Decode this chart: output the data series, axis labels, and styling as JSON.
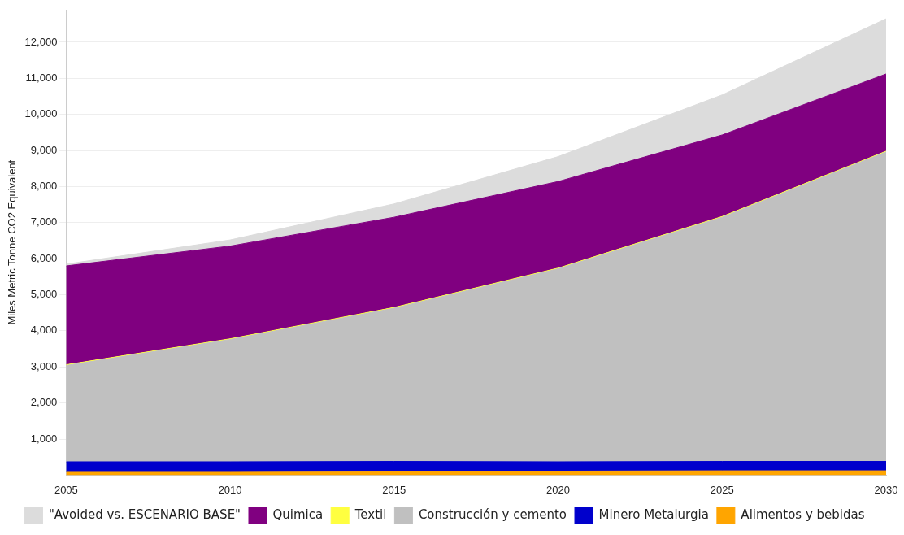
{
  "chart_data": {
    "type": "area",
    "stacked": true,
    "ylabel": "Miles Metric Tonne CO2 Equivalent",
    "x": [
      2005,
      2010,
      2015,
      2020,
      2025,
      2030
    ],
    "xlim": [
      2005,
      2030
    ],
    "xticks": [
      2005,
      2010,
      2015,
      2020,
      2025,
      2030
    ],
    "ylim": [
      0,
      12900
    ],
    "yticks": [
      {
        "value": 1000,
        "label": "1,000"
      },
      {
        "value": 2000,
        "label": "2,000"
      },
      {
        "value": 3000,
        "label": "3,000"
      },
      {
        "value": 4000,
        "label": "4,000"
      },
      {
        "value": 5000,
        "label": "5,000"
      },
      {
        "value": 6000,
        "label": "6,000"
      },
      {
        "value": 7000,
        "label": "7,000"
      },
      {
        "value": 8000,
        "label": "8,000"
      },
      {
        "value": 9000,
        "label": "9,000"
      },
      {
        "value": 10000,
        "label": "10,000"
      },
      {
        "value": 11000,
        "label": "11,000"
      },
      {
        "value": 12000,
        "label": "12,000"
      }
    ],
    "grid": "y",
    "legend": "bottom",
    "series": [
      {
        "name": "Alimentos y bebidas",
        "color": "#ffa500",
        "values": [
          100,
          100,
          110,
          110,
          120,
          120
        ]
      },
      {
        "name": "Minero Metalurgia",
        "color": "#0000cc",
        "values": [
          270,
          270,
          270,
          260,
          260,
          260
        ]
      },
      {
        "name": "Construcción y cemento",
        "color": "#c0c0c0",
        "values": [
          2670,
          3390,
          4250,
          5350,
          6770,
          8580
        ]
      },
      {
        "name": "Textil",
        "color": "#ffff40",
        "values": [
          20,
          20,
          20,
          20,
          20,
          20
        ]
      },
      {
        "name": "Quimica",
        "color": "#800080",
        "values": [
          2740,
          2570,
          2500,
          2400,
          2260,
          2140
        ]
      },
      {
        "name": "\"Avoided vs. ESCENARIO BASE\"",
        "color": "#dcdcdc",
        "values": [
          50,
          170,
          370,
          690,
          1110,
          1530
        ]
      }
    ]
  }
}
